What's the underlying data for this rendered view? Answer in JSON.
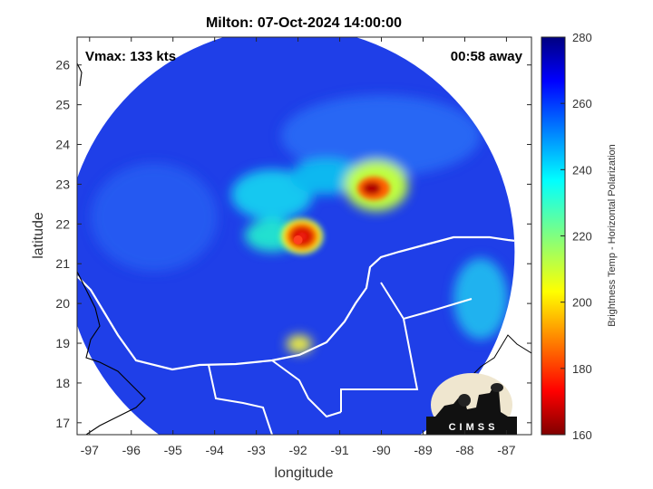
{
  "chart_data": {
    "type": "heatmap",
    "title": "Milton: 07-Oct-2024 14:00:00",
    "xlabel": "longitude",
    "ylabel": "latitude",
    "xlim": [
      -97.3,
      -86.4
    ],
    "ylim": [
      16.7,
      26.7
    ],
    "xticks": [
      -97,
      -96,
      -95,
      -94,
      -93,
      -92,
      -91,
      -90,
      -89,
      -88,
      -87
    ],
    "yticks": [
      17,
      18,
      19,
      20,
      21,
      22,
      23,
      24,
      25,
      26
    ],
    "grid": false,
    "colorbar": {
      "label": "Brightness Temp - Horizontal Polarization",
      "range": [
        160,
        280
      ],
      "ticks": [
        160,
        180,
        200,
        220,
        240,
        260,
        280
      ],
      "colormap": "jet"
    },
    "annotations": {
      "left": "Vmax: 133 kts",
      "right": "00:58 away"
    },
    "storm_center": {
      "lon": -92.0,
      "lat": 21.6,
      "min_tb": 170
    },
    "swath_center": {
      "lon": -92.2,
      "lat": 21.3
    },
    "logo_text": "CIMSS",
    "colors": {
      "background_tb": "#1f3fe8",
      "coastline": "#ffffff",
      "land_outline": "#000000"
    }
  }
}
